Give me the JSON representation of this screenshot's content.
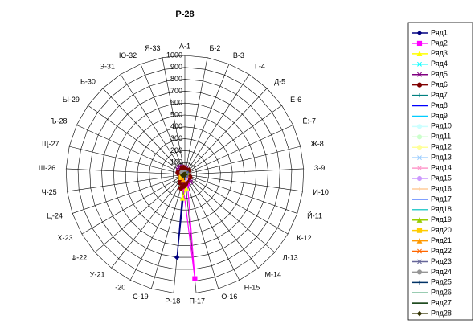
{
  "chart_data": {
    "type": "radar",
    "title": "Р-28",
    "categories": [
      "А-1",
      "Б-2",
      "В-3",
      "Г-4",
      "Д-5",
      "Е-6",
      "Ё:-7",
      "Ж-8",
      "З-9",
      "И-10",
      "Й-11",
      "К-12",
      "Л-13",
      "М-14",
      "Н-15",
      "О-16",
      "П-17",
      "Р-18",
      "С-19",
      "Т-20",
      "У-21",
      "Ф-22",
      "Х-23",
      "Ц-24",
      "Ч-25",
      "Ш-26",
      "Щ-27",
      "Ъ-28",
      "Ы-29",
      "Ь-30",
      "Э-31",
      "Ю-32",
      "Я-33"
    ],
    "ylim": [
      0,
      1000
    ],
    "yticks": [
      0,
      100,
      200,
      300,
      400,
      500,
      600,
      700,
      800,
      900,
      1000
    ],
    "grid": true,
    "legend": "right",
    "series": [
      {
        "name": "Ряд1",
        "color": "#000080",
        "marker": "diamond",
        "values": [
          20,
          10,
          5,
          5,
          0,
          0,
          0,
          0,
          0,
          0,
          0,
          0,
          0,
          0,
          10,
          20,
          40,
          700,
          30,
          20,
          10,
          0,
          0,
          0,
          0,
          0,
          0,
          0,
          0,
          0,
          0,
          0,
          10
        ]
      },
      {
        "name": "Ряд2",
        "color": "#ff00ff",
        "marker": "square",
        "values": [
          30,
          20,
          10,
          5,
          0,
          0,
          0,
          0,
          0,
          5,
          10,
          20,
          30,
          40,
          60,
          80,
          880,
          120,
          60,
          30,
          10,
          5,
          0,
          0,
          0,
          0,
          0,
          0,
          0,
          5,
          10,
          20,
          30
        ]
      },
      {
        "name": "Ряд3",
        "color": "#ffff00",
        "marker": "triangle",
        "values": [
          10,
          5,
          0,
          0,
          0,
          0,
          0,
          0,
          0,
          0,
          0,
          0,
          0,
          0,
          20,
          50,
          120,
          200,
          80,
          30,
          10,
          0,
          0,
          0,
          0,
          0,
          0,
          0,
          0,
          0,
          0,
          0,
          5
        ]
      },
      {
        "name": "Ряд4",
        "color": "#00ffff",
        "marker": "x",
        "values": [
          40,
          30,
          20,
          10,
          5,
          0,
          0,
          0,
          0,
          0,
          0,
          0,
          0,
          10,
          20,
          30,
          40,
          60,
          40,
          20,
          10,
          5,
          0,
          0,
          0,
          0,
          0,
          0,
          0,
          10,
          20,
          30,
          40
        ]
      },
      {
        "name": "Ряд5",
        "color": "#800080",
        "marker": "x",
        "values": [
          60,
          50,
          40,
          30,
          20,
          10,
          10,
          10,
          10,
          20,
          30,
          40,
          60,
          80,
          60,
          40,
          50,
          70,
          90,
          60,
          40,
          30,
          20,
          20,
          30,
          40,
          50,
          60,
          70,
          80,
          80,
          70,
          60
        ]
      },
      {
        "name": "Ряд6",
        "color": "#800000",
        "marker": "circle",
        "values": [
          50,
          40,
          30,
          40,
          50,
          40,
          30,
          20,
          20,
          30,
          40,
          50,
          40,
          30,
          40,
          60,
          80,
          100,
          120,
          80,
          60,
          50,
          40,
          30,
          40,
          50,
          60,
          50,
          40,
          40,
          50,
          60,
          60
        ]
      },
      {
        "name": "Ряд7",
        "color": "#008080",
        "marker": "plus",
        "values": [
          0,
          0,
          0,
          0,
          10,
          20,
          30,
          20,
          10,
          0,
          0,
          0,
          0,
          0,
          0,
          0,
          0,
          0,
          0,
          0,
          0,
          0,
          0,
          0,
          0,
          0,
          0,
          0,
          0,
          0,
          0,
          0,
          0
        ]
      },
      {
        "name": "Ряд8",
        "color": "#0000ff",
        "marker": "none",
        "values": [
          0,
          0,
          0,
          0,
          0,
          0,
          0,
          0,
          0,
          0,
          0,
          0,
          0,
          0,
          0,
          0,
          30,
          40,
          20,
          0,
          0,
          0,
          0,
          0,
          0,
          0,
          0,
          0,
          0,
          0,
          0,
          0,
          0
        ]
      },
      {
        "name": "Ряд9",
        "color": "#00ccff",
        "marker": "none",
        "values": [
          10,
          10,
          10,
          10,
          10,
          10,
          10,
          10,
          10,
          10,
          10,
          10,
          10,
          10,
          10,
          10,
          10,
          10,
          10,
          10,
          10,
          10,
          10,
          10,
          10,
          10,
          10,
          10,
          10,
          10,
          10,
          10,
          10
        ]
      },
      {
        "name": "Ряд10",
        "color": "#ccffff",
        "marker": "circle",
        "values": [
          0,
          0,
          0,
          0,
          0,
          0,
          0,
          0,
          0,
          0,
          0,
          0,
          0,
          0,
          0,
          20,
          0,
          0,
          0,
          0,
          0,
          0,
          0,
          0,
          0,
          0,
          0,
          0,
          0,
          0,
          0,
          0,
          0
        ]
      },
      {
        "name": "Ряд11",
        "color": "#ccffcc",
        "marker": "circle",
        "values": [
          5,
          5,
          5,
          5,
          5,
          5,
          5,
          5,
          5,
          5,
          5,
          5,
          5,
          5,
          5,
          5,
          5,
          5,
          5,
          5,
          5,
          5,
          5,
          5,
          5,
          5,
          5,
          5,
          5,
          5,
          5,
          5,
          5
        ]
      },
      {
        "name": "Ряд12",
        "color": "#ffff99",
        "marker": "circle",
        "values": [
          0,
          0,
          0,
          0,
          0,
          0,
          0,
          0,
          0,
          0,
          0,
          0,
          0,
          0,
          0,
          0,
          0,
          40,
          0,
          0,
          0,
          0,
          0,
          0,
          0,
          0,
          0,
          0,
          0,
          0,
          0,
          0,
          0
        ]
      },
      {
        "name": "Ряд13",
        "color": "#99ccff",
        "marker": "x",
        "values": [
          20,
          0,
          0,
          0,
          0,
          0,
          0,
          0,
          0,
          0,
          0,
          0,
          0,
          0,
          0,
          0,
          0,
          0,
          0,
          0,
          0,
          0,
          0,
          0,
          0,
          0,
          0,
          0,
          0,
          0,
          0,
          0,
          20
        ]
      },
      {
        "name": "Ряд14",
        "color": "#ff99cc",
        "marker": "x",
        "values": [
          0,
          0,
          0,
          0,
          0,
          0,
          0,
          0,
          0,
          0,
          0,
          0,
          0,
          0,
          0,
          30,
          30,
          0,
          0,
          0,
          0,
          0,
          0,
          0,
          0,
          0,
          0,
          0,
          0,
          0,
          0,
          0,
          0
        ]
      },
      {
        "name": "Ряд15",
        "color": "#cc99ff",
        "marker": "circle",
        "values": [
          15,
          15,
          10,
          10,
          10,
          10,
          10,
          10,
          10,
          10,
          10,
          10,
          10,
          10,
          20,
          30,
          40,
          30,
          20,
          10,
          10,
          10,
          10,
          10,
          10,
          10,
          10,
          10,
          10,
          10,
          10,
          10,
          15
        ]
      },
      {
        "name": "Ряд16",
        "color": "#ffcc99",
        "marker": "plus",
        "values": [
          0,
          0,
          0,
          0,
          0,
          0,
          0,
          0,
          0,
          0,
          0,
          0,
          0,
          0,
          0,
          0,
          0,
          0,
          0,
          0,
          0,
          0,
          0,
          0,
          20,
          30,
          20,
          0,
          0,
          0,
          0,
          0,
          0
        ]
      },
      {
        "name": "Ряд17",
        "color": "#3366ff",
        "marker": "none",
        "values": [
          30,
          20,
          10,
          0,
          0,
          0,
          0,
          0,
          0,
          0,
          0,
          0,
          0,
          0,
          0,
          0,
          0,
          0,
          0,
          0,
          0,
          0,
          0,
          0,
          0,
          0,
          0,
          0,
          0,
          0,
          10,
          20,
          30
        ]
      },
      {
        "name": "Ряд18",
        "color": "#33cccc",
        "marker": "none",
        "values": [
          0,
          0,
          0,
          0,
          0,
          0,
          0,
          0,
          0,
          0,
          0,
          0,
          0,
          0,
          0,
          0,
          0,
          0,
          0,
          0,
          0,
          0,
          0,
          0,
          0,
          0,
          0,
          0,
          0,
          0,
          0,
          0,
          0
        ]
      },
      {
        "name": "Ряд19",
        "color": "#99cc00",
        "marker": "triangle",
        "values": [
          0,
          0,
          0,
          10,
          20,
          10,
          0,
          0,
          0,
          0,
          0,
          0,
          0,
          0,
          0,
          0,
          0,
          0,
          0,
          0,
          0,
          0,
          0,
          0,
          0,
          0,
          0,
          0,
          0,
          0,
          0,
          0,
          0
        ]
      },
      {
        "name": "Ряд20",
        "color": "#ffcc00",
        "marker": "square",
        "values": [
          0,
          0,
          0,
          0,
          0,
          0,
          0,
          0,
          0,
          0,
          0,
          0,
          0,
          0,
          0,
          0,
          0,
          0,
          0,
          0,
          20,
          40,
          20,
          0,
          0,
          0,
          0,
          0,
          0,
          0,
          0,
          0,
          0
        ]
      },
      {
        "name": "Ряд21",
        "color": "#ff9900",
        "marker": "triangle",
        "values": [
          0,
          0,
          0,
          0,
          0,
          0,
          0,
          0,
          0,
          0,
          0,
          0,
          0,
          0,
          0,
          0,
          0,
          0,
          50,
          30,
          10,
          0,
          0,
          0,
          0,
          0,
          0,
          0,
          0,
          0,
          0,
          0,
          0
        ]
      },
      {
        "name": "Ряд22",
        "color": "#ff6600",
        "marker": "x",
        "values": [
          0,
          0,
          0,
          0,
          0,
          0,
          0,
          0,
          0,
          10,
          20,
          10,
          0,
          0,
          0,
          0,
          0,
          0,
          0,
          0,
          0,
          0,
          0,
          0,
          0,
          0,
          0,
          0,
          0,
          0,
          0,
          0,
          0
        ]
      },
      {
        "name": "Ряд23",
        "color": "#666699",
        "marker": "x",
        "values": [
          10,
          10,
          10,
          10,
          10,
          10,
          10,
          10,
          10,
          10,
          10,
          10,
          10,
          10,
          10,
          10,
          10,
          10,
          10,
          10,
          10,
          10,
          10,
          10,
          10,
          10,
          10,
          10,
          10,
          10,
          10,
          10,
          10
        ]
      },
      {
        "name": "Ряд24",
        "color": "#969696",
        "marker": "circle",
        "values": [
          0,
          0,
          0,
          0,
          0,
          0,
          0,
          0,
          0,
          0,
          0,
          0,
          0,
          0,
          0,
          0,
          0,
          0,
          0,
          0,
          0,
          0,
          0,
          0,
          0,
          0,
          0,
          20,
          30,
          20,
          0,
          0,
          0
        ]
      },
      {
        "name": "Ряд25",
        "color": "#003366",
        "marker": "plus",
        "values": [
          0,
          0,
          0,
          0,
          0,
          0,
          0,
          0,
          0,
          0,
          0,
          0,
          0,
          0,
          0,
          0,
          0,
          30,
          0,
          0,
          0,
          0,
          0,
          0,
          0,
          0,
          0,
          0,
          0,
          0,
          0,
          0,
          0
        ]
      },
      {
        "name": "Ряд26",
        "color": "#339966",
        "marker": "none",
        "values": [
          0,
          0,
          0,
          0,
          0,
          0,
          0,
          20,
          30,
          20,
          0,
          0,
          0,
          0,
          0,
          0,
          0,
          0,
          0,
          0,
          0,
          0,
          0,
          0,
          0,
          0,
          0,
          0,
          0,
          0,
          0,
          0,
          0
        ]
      },
      {
        "name": "Ряд27",
        "color": "#003300",
        "marker": "none",
        "values": [
          0,
          0,
          0,
          0,
          0,
          0,
          0,
          0,
          0,
          0,
          0,
          0,
          10,
          20,
          10,
          0,
          0,
          0,
          0,
          0,
          0,
          0,
          0,
          0,
          0,
          0,
          0,
          0,
          0,
          0,
          0,
          0,
          0
        ]
      },
      {
        "name": "Ряд28",
        "color": "#333300",
        "marker": "diamond",
        "values": [
          0,
          0,
          0,
          0,
          0,
          0,
          0,
          0,
          0,
          0,
          0,
          0,
          0,
          0,
          0,
          0,
          0,
          0,
          0,
          0,
          0,
          0,
          10,
          20,
          10,
          0,
          0,
          0,
          0,
          0,
          0,
          0,
          0
        ]
      }
    ]
  }
}
